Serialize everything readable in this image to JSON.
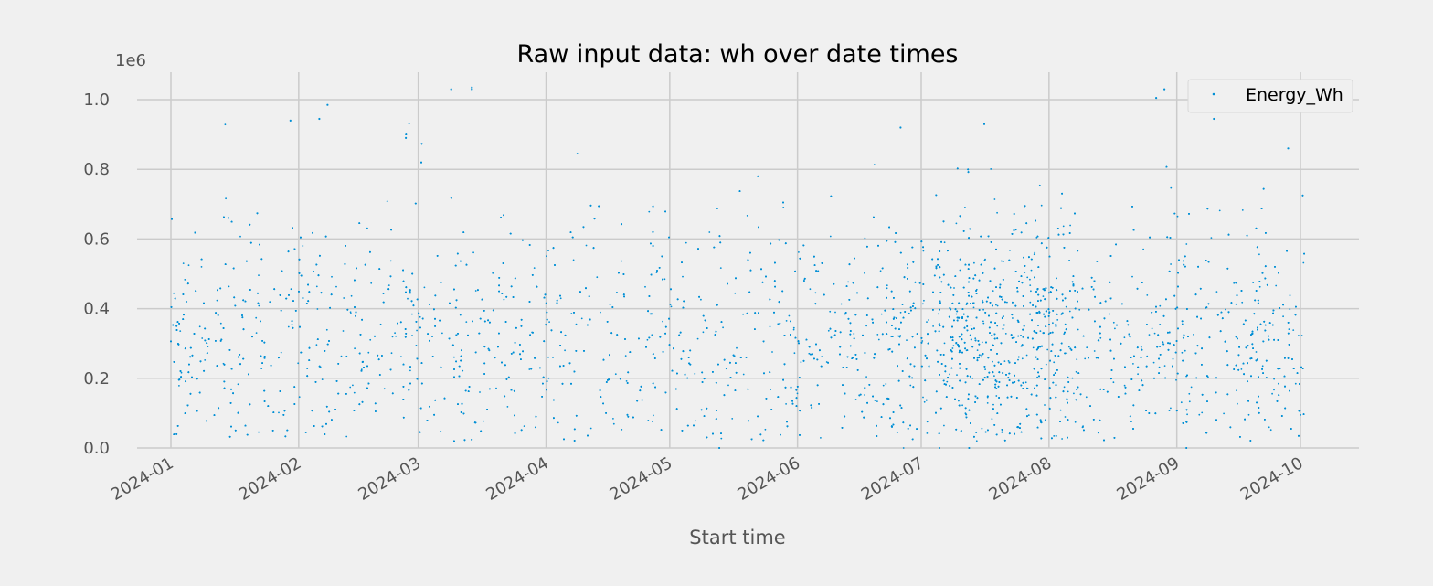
{
  "chart_data": {
    "type": "scatter",
    "title": "Raw input data: wh over date times",
    "xlabel": "Start time",
    "ylabel": "",
    "y_offset_text": "1e6",
    "x_ticks": [
      "2024-01",
      "2024-02",
      "2024-03",
      "2024-04",
      "2024-05",
      "2024-06",
      "2024-07",
      "2024-08",
      "2024-09",
      "2024-10"
    ],
    "y_ticks": [
      "0.0",
      "0.2",
      "0.4",
      "0.6",
      "0.8",
      "1.0"
    ],
    "xlim": [
      "2023-12-20",
      "2024-10-15"
    ],
    "ylim": [
      -0.04,
      1.08
    ],
    "grid": true,
    "legend_position": "top-right",
    "series": [
      {
        "name": "Energy_Wh",
        "color": "#008fd5",
        "marker": "point",
        "point_count": 9000,
        "density_profile": [
          {
            "from": "2024-01-01",
            "to": "2024-06-20",
            "relative_density": 1.0,
            "typical_range": [
              0.05,
              0.65
            ]
          },
          {
            "from": "2024-06-20",
            "to": "2024-07-05",
            "relative_density": 1.7,
            "typical_range": [
              0.05,
              0.75
            ]
          },
          {
            "from": "2024-07-05",
            "to": "2024-08-05",
            "relative_density": 3.6,
            "typical_range": [
              0.05,
              0.75
            ]
          },
          {
            "from": "2024-08-05",
            "to": "2024-10-02",
            "relative_density": 1.4,
            "typical_range": [
              0.05,
              0.75
            ]
          }
        ],
        "notable_points": [
          {
            "x": "2024-02-08",
            "y": 0.985
          },
          {
            "x": "2024-01-30",
            "y": 0.94
          },
          {
            "x": "2024-02-06",
            "y": 0.945
          },
          {
            "x": "2024-03-09",
            "y": 1.03
          },
          {
            "x": "2024-03-14",
            "y": 1.03
          },
          {
            "x": "2024-03-14",
            "y": 1.035
          },
          {
            "x": "2024-08-27",
            "y": 1.005
          },
          {
            "x": "2024-08-29",
            "y": 1.03
          },
          {
            "x": "2024-06-26",
            "y": 0.92
          },
          {
            "x": "2024-09-10",
            "y": 0.945
          },
          {
            "x": "2024-09-28",
            "y": 0.86
          },
          {
            "x": "2024-02-27",
            "y": 0.89
          }
        ]
      }
    ]
  }
}
